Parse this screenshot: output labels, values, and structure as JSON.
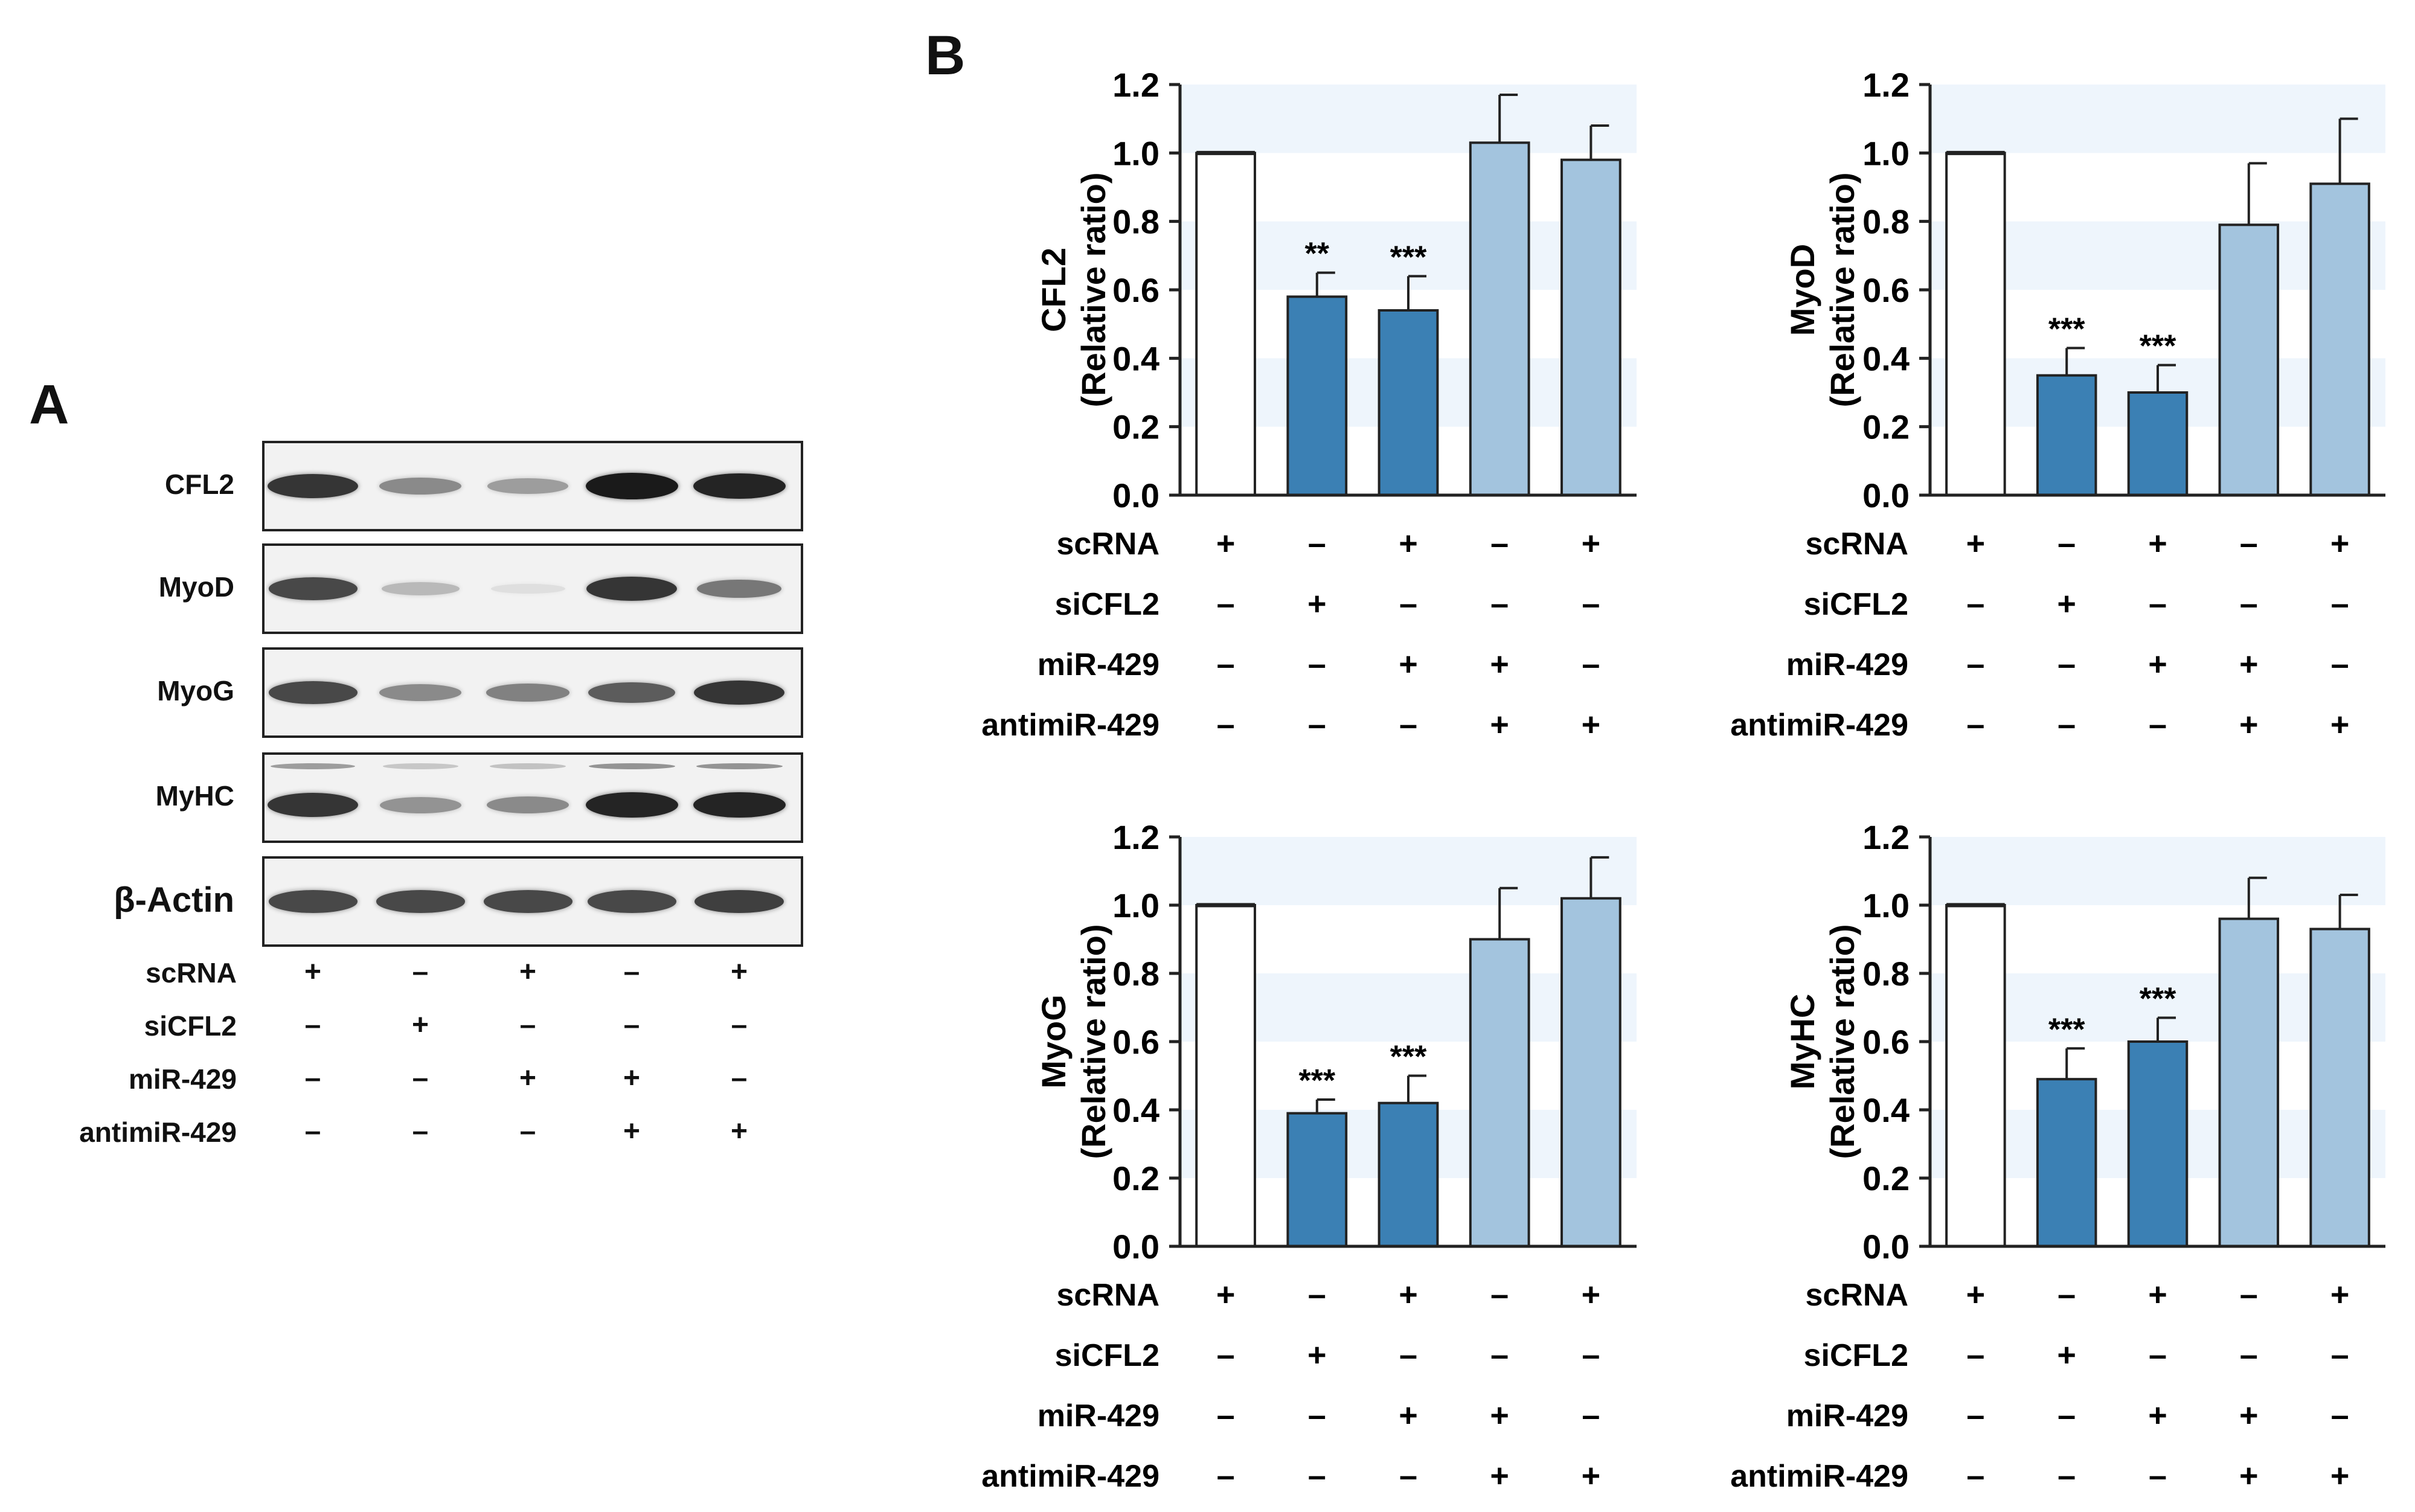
{
  "panel_a": {
    "letter": "A",
    "blots": [
      {
        "label": "CFL2",
        "intensity": [
          1.0,
          0.55,
          0.45,
          1.15,
          1.1
        ]
      },
      {
        "label": "MyoD",
        "intensity": [
          0.9,
          0.3,
          0.1,
          1.0,
          0.65
        ]
      },
      {
        "label": "MyoG",
        "intensity": [
          0.9,
          0.55,
          0.6,
          0.8,
          1.0
        ]
      },
      {
        "label": "MyHC",
        "intensity": [
          1.0,
          0.5,
          0.55,
          1.1,
          1.1
        ]
      },
      {
        "label": "β-Actin",
        "intensity": [
          0.9,
          0.9,
          0.9,
          0.9,
          0.95
        ]
      }
    ],
    "conditions": [
      {
        "name": "scRNA",
        "signs": [
          "+",
          "–",
          "+",
          "–",
          "+"
        ]
      },
      {
        "name": "siCFL2",
        "signs": [
          "–",
          "+",
          "–",
          "–",
          "–"
        ]
      },
      {
        "name": "miR-429",
        "signs": [
          "–",
          "–",
          "+",
          "+",
          "–"
        ]
      },
      {
        "name": "antimiR-429",
        "signs": [
          "–",
          "–",
          "–",
          "+",
          "+"
        ]
      }
    ]
  },
  "panel_b": {
    "letter": "B",
    "colors": {
      "control": "#ffffff",
      "treated": "#3b80b4",
      "rescue": "#a3c4de",
      "band": "#eef5fc",
      "axis": "#222222"
    }
  },
  "chart_data": [
    {
      "type": "bar",
      "title": "",
      "ylabel": "CFL2\n(Relative ratio)",
      "ylim": [
        0,
        1.2
      ],
      "yticks": [
        "0.0",
        "0.2",
        "0.4",
        "0.6",
        "0.8",
        "1.0",
        "1.2"
      ],
      "values": [
        1.0,
        0.58,
        0.54,
        1.03,
        0.98
      ],
      "errors": [
        0.0,
        0.07,
        0.1,
        0.14,
        0.1
      ],
      "significance": [
        "",
        "**",
        "***",
        "",
        ""
      ],
      "bar_groups": [
        "control",
        "treated",
        "treated",
        "rescue",
        "rescue"
      ],
      "conditions": [
        {
          "name": "scRNA",
          "signs": [
            "+",
            "–",
            "+",
            "–",
            "+"
          ]
        },
        {
          "name": "siCFL2",
          "signs": [
            "–",
            "+",
            "–",
            "–",
            "–"
          ]
        },
        {
          "name": "miR-429",
          "signs": [
            "–",
            "–",
            "+",
            "+",
            "–"
          ]
        },
        {
          "name": "antimiR-429",
          "signs": [
            "–",
            "–",
            "–",
            "+",
            "+"
          ]
        }
      ]
    },
    {
      "type": "bar",
      "title": "",
      "ylabel": "MyoD\n(Relative ratio)",
      "ylim": [
        0,
        1.2
      ],
      "yticks": [
        "0.0",
        "0.2",
        "0.4",
        "0.6",
        "0.8",
        "1.0",
        "1.2"
      ],
      "values": [
        1.0,
        0.35,
        0.3,
        0.79,
        0.91
      ],
      "errors": [
        0.0,
        0.08,
        0.08,
        0.18,
        0.19
      ],
      "significance": [
        "",
        "***",
        "***",
        "",
        ""
      ],
      "bar_groups": [
        "control",
        "treated",
        "treated",
        "rescue",
        "rescue"
      ],
      "conditions": [
        {
          "name": "scRNA",
          "signs": [
            "+",
            "–",
            "+",
            "–",
            "+"
          ]
        },
        {
          "name": "siCFL2",
          "signs": [
            "–",
            "+",
            "–",
            "–",
            "–"
          ]
        },
        {
          "name": "miR-429",
          "signs": [
            "–",
            "–",
            "+",
            "+",
            "–"
          ]
        },
        {
          "name": "antimiR-429",
          "signs": [
            "–",
            "–",
            "–",
            "+",
            "+"
          ]
        }
      ]
    },
    {
      "type": "bar",
      "title": "",
      "ylabel": "MyoG\n(Relative ratio)",
      "ylim": [
        0,
        1.2
      ],
      "yticks": [
        "0.0",
        "0.2",
        "0.4",
        "0.6",
        "0.8",
        "1.0",
        "1.2"
      ],
      "values": [
        1.0,
        0.39,
        0.42,
        0.9,
        1.02
      ],
      "errors": [
        0.0,
        0.04,
        0.08,
        0.15,
        0.12
      ],
      "significance": [
        "",
        "***",
        "***",
        "",
        ""
      ],
      "bar_groups": [
        "control",
        "treated",
        "treated",
        "rescue",
        "rescue"
      ],
      "conditions": [
        {
          "name": "scRNA",
          "signs": [
            "+",
            "–",
            "+",
            "–",
            "+"
          ]
        },
        {
          "name": "siCFL2",
          "signs": [
            "–",
            "+",
            "–",
            "–",
            "–"
          ]
        },
        {
          "name": "miR-429",
          "signs": [
            "–",
            "–",
            "+",
            "+",
            "–"
          ]
        },
        {
          "name": "antimiR-429",
          "signs": [
            "–",
            "–",
            "–",
            "+",
            "+"
          ]
        }
      ]
    },
    {
      "type": "bar",
      "title": "",
      "ylabel": "MyHC\n(Relative ratio)",
      "ylim": [
        0,
        1.2
      ],
      "yticks": [
        "0.0",
        "0.2",
        "0.4",
        "0.6",
        "0.8",
        "1.0",
        "1.2"
      ],
      "values": [
        1.0,
        0.49,
        0.6,
        0.96,
        0.93
      ],
      "errors": [
        0.0,
        0.09,
        0.07,
        0.12,
        0.1
      ],
      "significance": [
        "",
        "***",
        "***",
        "",
        ""
      ],
      "bar_groups": [
        "control",
        "treated",
        "treated",
        "rescue",
        "rescue"
      ],
      "conditions": [
        {
          "name": "scRNA",
          "signs": [
            "+",
            "–",
            "+",
            "–",
            "+"
          ]
        },
        {
          "name": "siCFL2",
          "signs": [
            "–",
            "+",
            "–",
            "–",
            "–"
          ]
        },
        {
          "name": "miR-429",
          "signs": [
            "–",
            "–",
            "+",
            "+",
            "–"
          ]
        },
        {
          "name": "antimiR-429",
          "signs": [
            "–",
            "–",
            "–",
            "+",
            "+"
          ]
        }
      ]
    }
  ]
}
